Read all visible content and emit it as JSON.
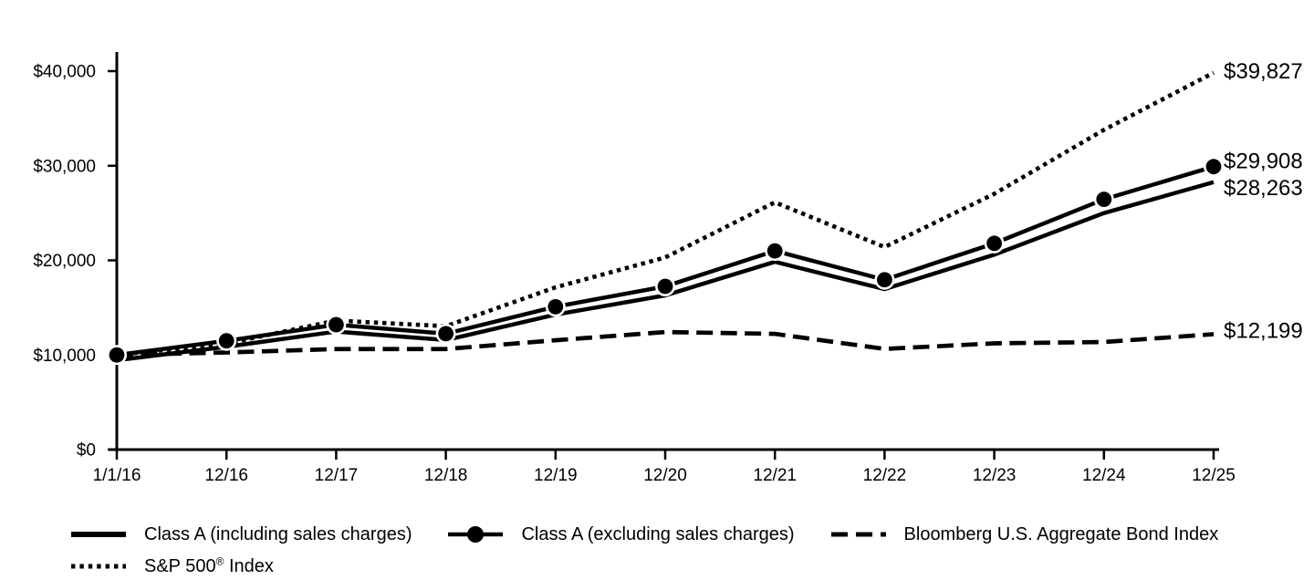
{
  "chart_data": {
    "type": "line",
    "title": "",
    "xlabel": "",
    "ylabel": "",
    "ylim": [
      0,
      40000
    ],
    "grid": false,
    "legend_position": "bottom-left",
    "y_ticks": [
      {
        "label": "$0",
        "value": 0
      },
      {
        "label": "$10,000",
        "value": 10000
      },
      {
        "label": "$20,000",
        "value": 20000
      },
      {
        "label": "$30,000",
        "value": 30000
      },
      {
        "label": "$40,000",
        "value": 40000
      }
    ],
    "categories": [
      "1/1/16",
      "12/16",
      "12/17",
      "12/18",
      "12/19",
      "12/20",
      "12/21",
      "12/22",
      "12/23",
      "12/24",
      "12/25"
    ],
    "series": [
      {
        "name": "Class A (including sales charges)",
        "style": "solid",
        "end_label": "$28,263",
        "end_value": 28263,
        "values": [
          9450,
          10867,
          12474,
          11576,
          14269,
          16301,
          19845,
          16963,
          20601,
          24995,
          28263
        ]
      },
      {
        "name": "Class A (excluding sales charges)",
        "style": "solid-marker",
        "end_label": "$29,908",
        "end_value": 29908,
        "values": [
          10000,
          11500,
          13200,
          12250,
          15100,
          17250,
          21000,
          17950,
          21800,
          26450,
          29908
        ]
      },
      {
        "name": "Bloomberg U.S. Aggregate Bond Index",
        "style": "dashed",
        "end_label": "$12,199",
        "end_value": 12199,
        "values": [
          10000,
          10265,
          10628,
          10629,
          11556,
          12424,
          12233,
          10641,
          11230,
          11370,
          12199
        ]
      },
      {
        "name": "S&P 500® Index",
        "style": "dotted",
        "end_label": "$39,827",
        "end_value": 39827,
        "values": [
          10000,
          11196,
          13640,
          13043,
          17150,
          20306,
          26136,
          21403,
          27030,
          33793,
          39827
        ]
      }
    ]
  },
  "colors": {
    "line": "#000000",
    "text": "#000000",
    "background": "#ffffff"
  }
}
